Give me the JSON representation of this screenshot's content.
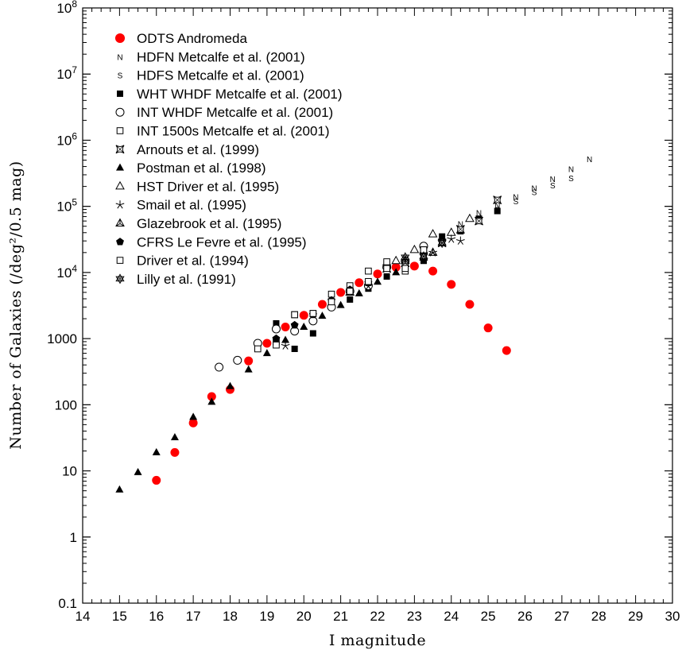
{
  "chart_data": {
    "type": "scatter",
    "xlabel": "I magnitude",
    "ylabel": "Number of Galaxies (/deg²/0.5 mag)",
    "xlim": [
      14,
      30
    ],
    "ylim": [
      0.1,
      100000000
    ],
    "yscale": "log",
    "x_ticks": [
      "14",
      "15",
      "16",
      "17",
      "18",
      "19",
      "20",
      "21",
      "22",
      "23",
      "24",
      "25",
      "26",
      "27",
      "28",
      "29",
      "30"
    ],
    "y_ticks": [
      {
        "v": 0.1,
        "label": "0.1"
      },
      {
        "v": 1,
        "label": "1"
      },
      {
        "v": 10,
        "label": "10"
      },
      {
        "v": 100,
        "label": "100"
      },
      {
        "v": 1000,
        "label": "1000"
      },
      {
        "v": 10000,
        "base": "10",
        "exp": "4"
      },
      {
        "v": 100000,
        "base": "10",
        "exp": "5"
      },
      {
        "v": 1000000,
        "base": "10",
        "exp": "6"
      },
      {
        "v": 10000000,
        "base": "10",
        "exp": "7"
      },
      {
        "v": 100000000,
        "base": "10",
        "exp": "8"
      }
    ],
    "grid": false,
    "legend_position": "top-left",
    "series": [
      {
        "name": "ODTS Andromeda",
        "marker": "circle-red",
        "color": "#ff0000",
        "x": [
          16,
          16.5,
          17,
          17.5,
          18,
          18.5,
          19,
          19.5,
          20,
          20.5,
          21,
          21.5,
          22,
          22.5,
          23,
          23.5,
          24,
          24.5,
          25,
          25.5
        ],
        "y": [
          7.2,
          19,
          53,
          133,
          170,
          460,
          850,
          1500,
          2250,
          3300,
          5000,
          7000,
          9500,
          12000,
          12500,
          10500,
          6600,
          3300,
          1450,
          660
        ]
      },
      {
        "name": "HDFN Metcalfe et al. (2001)",
        "marker": "N",
        "x": [
          24.25,
          24.75,
          25.25,
          25.75,
          26.25,
          26.75,
          27.25,
          27.75
        ],
        "y": [
          55000,
          80000,
          105000,
          140000,
          190000,
          260000,
          370000,
          520000
        ]
      },
      {
        "name": "HDFS Metcalfe et al. (2001)",
        "marker": "S",
        "x": [
          24.25,
          24.75,
          25.25,
          25.75,
          26.25,
          26.75,
          27.25
        ],
        "y": [
          45000,
          65000,
          90000,
          120000,
          165000,
          210000,
          270000
        ]
      },
      {
        "name": "WHT WHDF Metcalfe et al. (2001)",
        "marker": "filled-square",
        "x": [
          19.25,
          19.75,
          20.25,
          20.75,
          21.25,
          21.75,
          22.25,
          22.75,
          23.25,
          23.75,
          24.25,
          24.75,
          25.25
        ],
        "y": [
          1700,
          700,
          1200,
          3500,
          3900,
          5700,
          8700,
          10500,
          15000,
          35000,
          42000,
          65000,
          85000
        ]
      },
      {
        "name": "INT WHDF Metcalfe et al. (2001)",
        "marker": "open-circle",
        "x": [
          18.75,
          19.25,
          19.75,
          20.25,
          20.75,
          21.25,
          21.75,
          22.25,
          22.75,
          23.25,
          17.7,
          18.2
        ],
        "y": [
          850,
          1400,
          1300,
          1850,
          3000,
          5200,
          6300,
          12000,
          15000,
          25000,
          370,
          470
        ]
      },
      {
        "name": "INT 1500s  Metcalfe et al. (2001)",
        "marker": "open-square",
        "x": [
          18.75,
          19.25,
          19.75,
          20.25,
          20.75,
          21.25,
          21.75,
          22.25,
          22.75,
          23.25
        ],
        "y": [
          700,
          900,
          2300,
          2400,
          4700,
          6300,
          10500,
          14500,
          10500,
          22000
        ]
      },
      {
        "name": "Arnouts et al. (1999)",
        "marker": "star-box",
        "x": [
          22.25,
          22.75,
          23.25,
          23.75,
          24.25,
          24.75,
          25.25
        ],
        "y": [
          11500,
          14000,
          17500,
          28000,
          45000,
          60000,
          125000
        ]
      },
      {
        "name": "Postman et al. (1998)",
        "marker": "filled-triangle",
        "x": [
          15,
          15.5,
          16,
          16.5,
          17,
          17.5,
          18,
          18.5,
          19,
          19.5,
          20,
          20.5,
          21,
          21.5,
          22,
          22.5
        ],
        "y": [
          5.2,
          9.5,
          19,
          32,
          65,
          110,
          190,
          340,
          600,
          950,
          1500,
          2200,
          3200,
          4800,
          7200,
          10000
        ]
      },
      {
        "name": "HST Driver et al. (1995)",
        "marker": "open-triangle",
        "x": [
          22.5,
          23,
          23.5,
          24,
          24.5
        ],
        "y": [
          15000,
          22000,
          38000,
          40000,
          65000
        ]
      },
      {
        "name": "Smail et al. (1995)",
        "marker": "star",
        "x": [
          19.5,
          21.75,
          23.5,
          24,
          24.25
        ],
        "y": [
          780,
          6200,
          20000,
          32000,
          30000
        ]
      },
      {
        "name": "Glazebrook et al. (1995)",
        "marker": "skeletal-triangle",
        "x": [
          21.25,
          22.75,
          23.5
        ],
        "y": [
          5000,
          15000,
          20000
        ]
      },
      {
        "name": "CFRS Le Fevre et al. (1995)",
        "marker": "filled-pentagon",
        "x": [
          19.25,
          19.75,
          20.25,
          20.75,
          21.25,
          21.75
        ],
        "y": [
          1000,
          1600,
          2300,
          3800,
          5500,
          7000
        ]
      },
      {
        "name": "Driver et al. (1994)",
        "marker": "open-square",
        "x": [
          19.25,
          19.75,
          20.25,
          20.75,
          21.25,
          21.75,
          22.25,
          22.75,
          23.25
        ],
        "y": [
          800,
          2300,
          2400,
          3600,
          5200,
          7300,
          11500,
          11500,
          22000
        ]
      },
      {
        "name": "Lilly et al. (1991)",
        "marker": "star-of-david",
        "x": [
          22.75,
          23.25,
          23.75
        ],
        "y": [
          17000,
          17500,
          28000
        ]
      }
    ]
  }
}
